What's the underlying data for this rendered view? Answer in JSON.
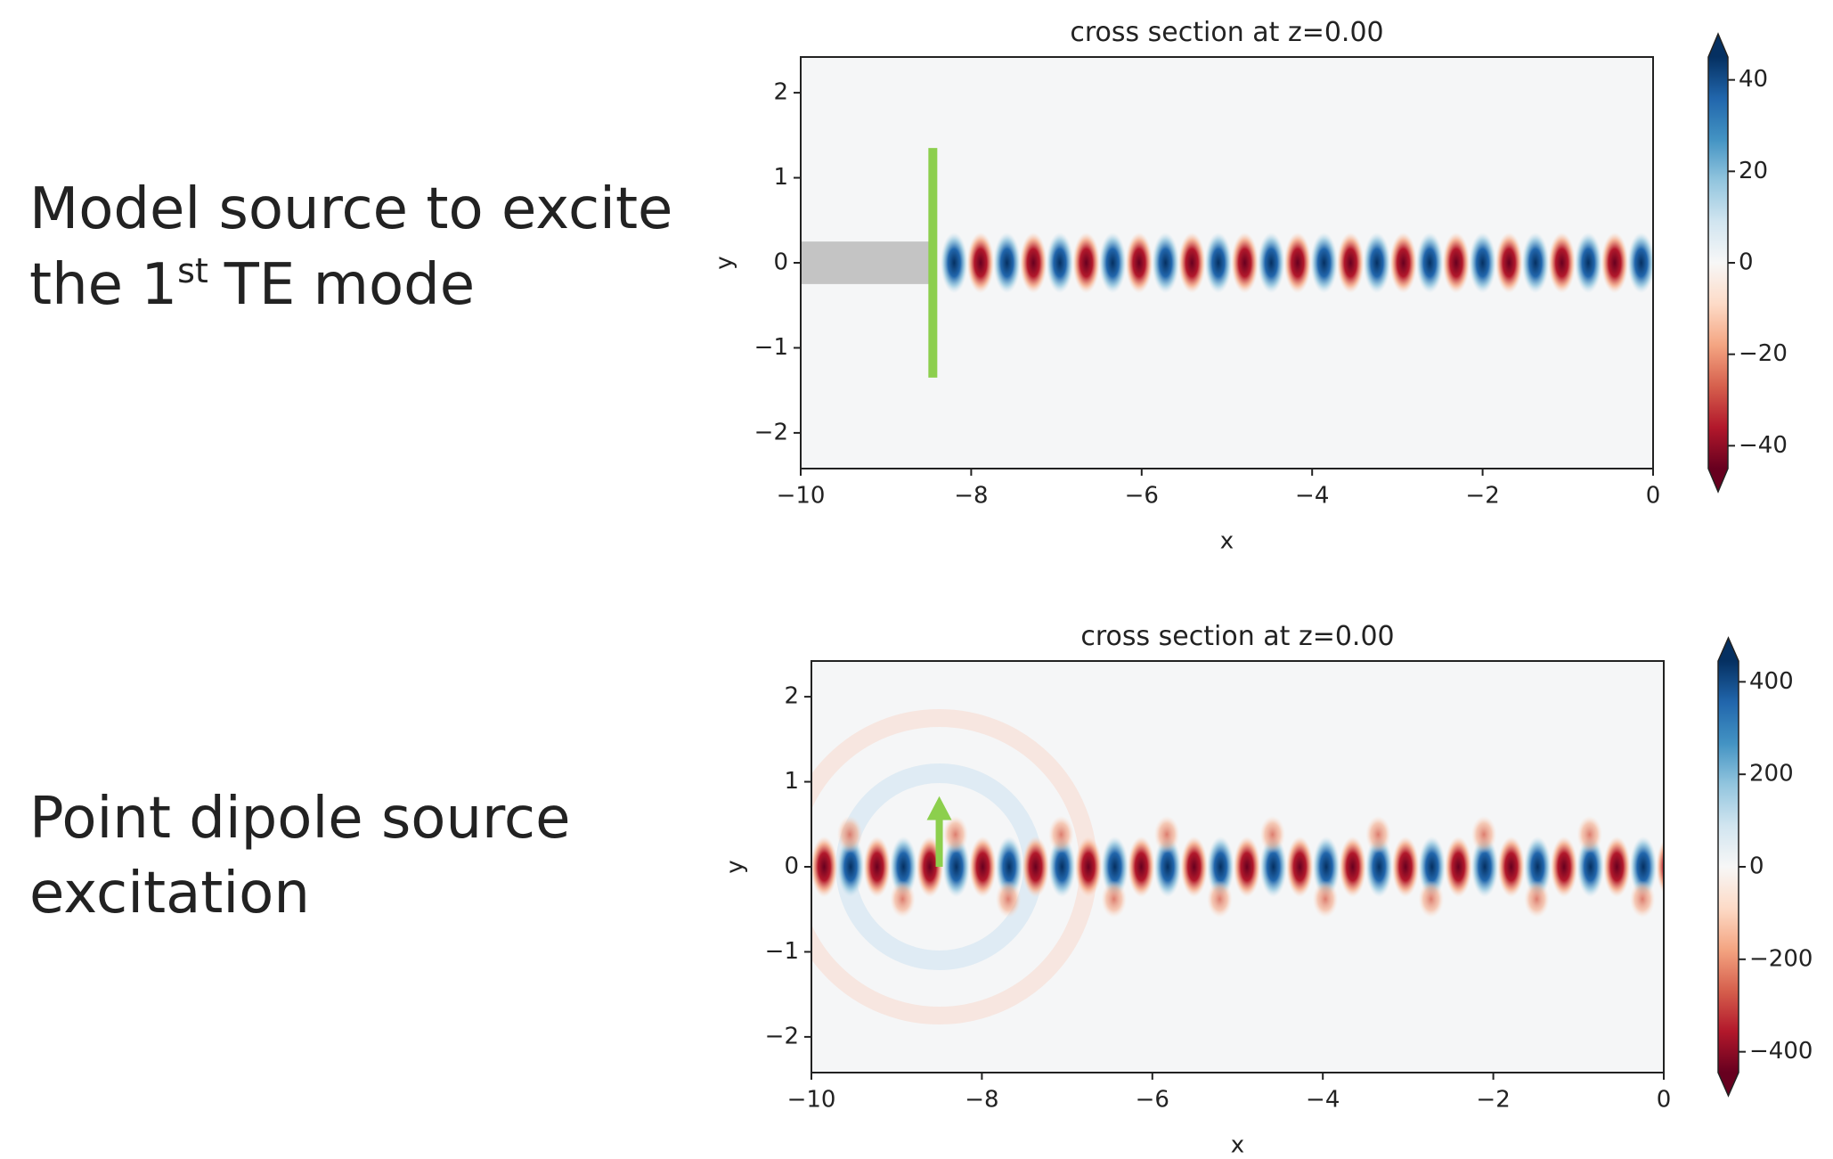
{
  "slide": {
    "top_text": {
      "line1": "Model source to excite",
      "line2_start": "the 1",
      "line2_sup": "st",
      "line2_end": "TE mode"
    },
    "bottom_text": {
      "line1": "Point dipole source",
      "line2": "excitation"
    }
  },
  "chart_data": [
    {
      "type": "heatmap",
      "title": "cross section at z=0.00",
      "x_label": "x",
      "y_label": "y",
      "xlim": [
        -10,
        0
      ],
      "ylim": [
        -2.42,
        2.42
      ],
      "xticks": [
        {
          "value": -10,
          "label": "−10"
        },
        {
          "value": -8,
          "label": "−8"
        },
        {
          "value": -6,
          "label": "−6"
        },
        {
          "value": -4,
          "label": "−4"
        },
        {
          "value": -2,
          "label": "−2"
        },
        0
      ],
      "yticks": [
        {
          "value": -2,
          "label": "−2"
        },
        {
          "value": -1,
          "label": "−1"
        },
        0,
        1,
        2
      ],
      "colorbar_lim": [
        -45,
        45
      ],
      "colorbar_ticks": [
        {
          "value": -40,
          "label": "−40"
        },
        {
          "value": -20,
          "label": "−20"
        },
        0,
        20,
        40
      ],
      "colormap": [
        "#67001f",
        "#b2182b",
        "#d6604d",
        "#f4a582",
        "#fddbc7",
        "#f7f7f7",
        "#d1e5f0",
        "#92c5de",
        "#4393c3",
        "#2166ac",
        "#053061"
      ]
    },
    {
      "type": "heatmap",
      "title": "cross section at z=0.00",
      "x_label": "x",
      "y_label": "y",
      "xlim": [
        -10,
        0
      ],
      "ylim": [
        -2.42,
        2.42
      ],
      "xticks": [
        {
          "value": -10,
          "label": "−10"
        },
        {
          "value": -8,
          "label": "−8"
        },
        {
          "value": -6,
          "label": "−6"
        },
        {
          "value": -4,
          "label": "−4"
        },
        {
          "value": -2,
          "label": "−2"
        },
        0
      ],
      "yticks": [
        {
          "value": -2,
          "label": "−2"
        },
        {
          "value": -1,
          "label": "−1"
        },
        0,
        1,
        2
      ],
      "colorbar_lim": [
        -445,
        445
      ],
      "colorbar_ticks": [
        {
          "value": -400,
          "label": "−400"
        },
        {
          "value": -200,
          "label": "−200"
        },
        0,
        200,
        400
      ],
      "colormap": [
        "#67001f",
        "#b2182b",
        "#d6604d",
        "#f4a582",
        "#fddbc7",
        "#f7f7f7",
        "#d1e5f0",
        "#92c5de",
        "#4393c3",
        "#2166ac",
        "#053061"
      ]
    }
  ]
}
